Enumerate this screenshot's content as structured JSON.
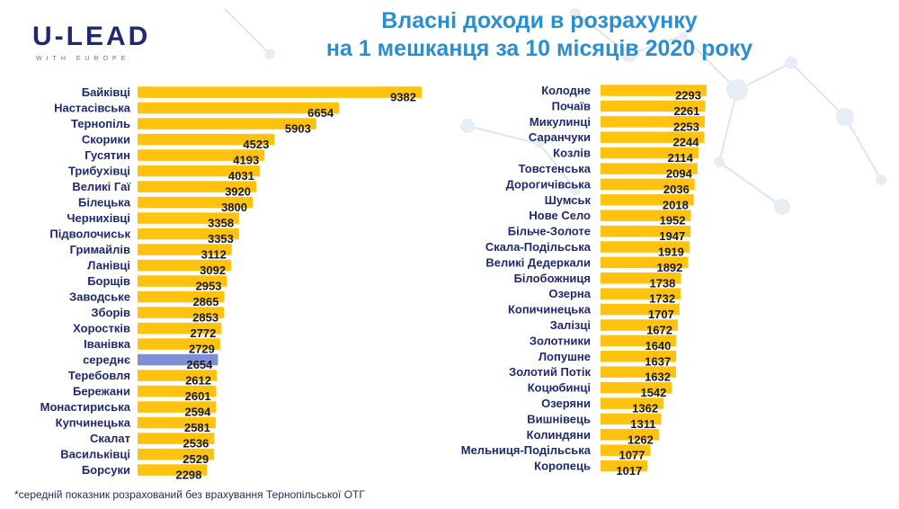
{
  "logo": {
    "main": "U-LEAD",
    "sub": "WITH EUROPE"
  },
  "title_line1": "Власні доходи в розрахунку",
  "title_line2": "на 1 мешканця за 10 місяців 2020 року",
  "footnote": "*середній показник розрахований без врахування Тернопільської ОТГ",
  "colors": {
    "bar": "#FFC20E",
    "highlight_bar": "#7F8FD6",
    "label": "#1F2A6E",
    "title": "#2A8FD0"
  },
  "chart_data": [
    {
      "type": "bar",
      "orientation": "horizontal",
      "highlight": "середнє",
      "categories": [
        "Байківці",
        "Настасівська",
        "Тернопіль",
        "Скорики",
        "Гусятин",
        "Трибухівці",
        "Великі Гаї",
        "Білецька",
        "Черниxівці",
        "Підволочиськ",
        "Гримайлів",
        "Ланівці",
        "Борщів",
        "Заводське",
        "Зборів",
        "Хоростків",
        "Іванівка",
        "середнє",
        "Теребовля",
        "Бережани",
        "Монастириська",
        "Купчинецька",
        "Скалат",
        "Васильківці",
        "Борсуки"
      ],
      "values": [
        9382,
        6654,
        5903,
        4523,
        4193,
        4031,
        3920,
        3800,
        3358,
        3353,
        3112,
        3092,
        2953,
        2865,
        2853,
        2772,
        2729,
        2654,
        2612,
        2601,
        2594,
        2581,
        2536,
        2529,
        2298
      ]
    },
    {
      "type": "bar",
      "orientation": "horizontal",
      "categories": [
        "Колодне",
        "Почаїв",
        "Микулинці",
        "Саранчуки",
        "Козлів",
        "Товстенська",
        "Дорогичівська",
        "Шумськ",
        "Нове Село",
        "Більче-Золоте",
        "Скала-Подільська",
        "Великі Дедеркали",
        "Білобожниця",
        "Озерна",
        "Копичинецька",
        "Залізці",
        "Золотники",
        "Лопушне",
        "Золотий Потік",
        "Коцюбинці",
        "Озеряни",
        "Вишнівець",
        "Колиндяни",
        "Мельниця-Подільська",
        "Коропець"
      ],
      "values": [
        2293,
        2261,
        2253,
        2244,
        2114,
        2094,
        2036,
        2018,
        1952,
        1947,
        1919,
        1892,
        1738,
        1732,
        1707,
        1672,
        1640,
        1637,
        1632,
        1542,
        1362,
        1311,
        1262,
        1077,
        1017
      ]
    }
  ]
}
